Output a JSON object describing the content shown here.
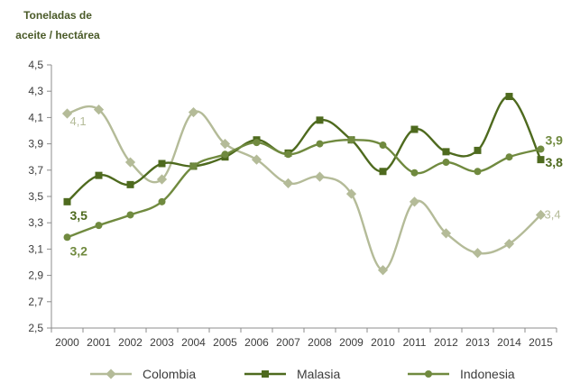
{
  "chart_data": {
    "type": "line",
    "ylabel_lines": [
      "Toneladas de",
      "aceite / hectárea"
    ],
    "xlabel": "",
    "x": [
      "2000",
      "2001",
      "2002",
      "2003",
      "2004",
      "2005",
      "2006",
      "2007",
      "2008",
      "2009",
      "2010",
      "2011",
      "2012",
      "2013",
      "2014",
      "2015"
    ],
    "ylim": [
      2.5,
      4.5
    ],
    "yticks": [
      "2,5",
      "2,7",
      "2,9",
      "3,1",
      "3,3",
      "3,5",
      "3,7",
      "3,9",
      "4,1",
      "4,3",
      "4,5"
    ],
    "grid": false,
    "legend_position": "bottom",
    "series": [
      {
        "name": "Colombia",
        "color": "#b4bb98",
        "marker": "diamond",
        "values": [
          4.13,
          4.16,
          3.76,
          3.63,
          4.14,
          3.9,
          3.78,
          3.6,
          3.65,
          3.52,
          2.94,
          3.46,
          3.22,
          3.07,
          3.14,
          3.36
        ],
        "labels": [
          {
            "index": 0,
            "text": "4,1"
          },
          {
            "index": 15,
            "text": "3,4"
          }
        ]
      },
      {
        "name": "Malasia",
        "color": "#4e6a1e",
        "marker": "square",
        "values": [
          3.46,
          3.66,
          3.59,
          3.75,
          3.73,
          3.8,
          3.93,
          3.83,
          4.08,
          3.93,
          3.69,
          4.01,
          3.84,
          3.85,
          4.26,
          3.78
        ],
        "labels": [
          {
            "index": 0,
            "text": "3,5"
          },
          {
            "index": 15,
            "text": "3,8"
          }
        ]
      },
      {
        "name": "Indonesia",
        "color": "#708a3f",
        "marker": "circle",
        "values": [
          3.19,
          3.28,
          3.36,
          3.46,
          3.73,
          3.82,
          3.91,
          3.82,
          3.9,
          3.93,
          3.89,
          3.68,
          3.76,
          3.69,
          3.8,
          3.86
        ],
        "labels": [
          {
            "index": 0,
            "text": "3,2"
          },
          {
            "index": 15,
            "text": "3,9"
          }
        ]
      }
    ]
  }
}
